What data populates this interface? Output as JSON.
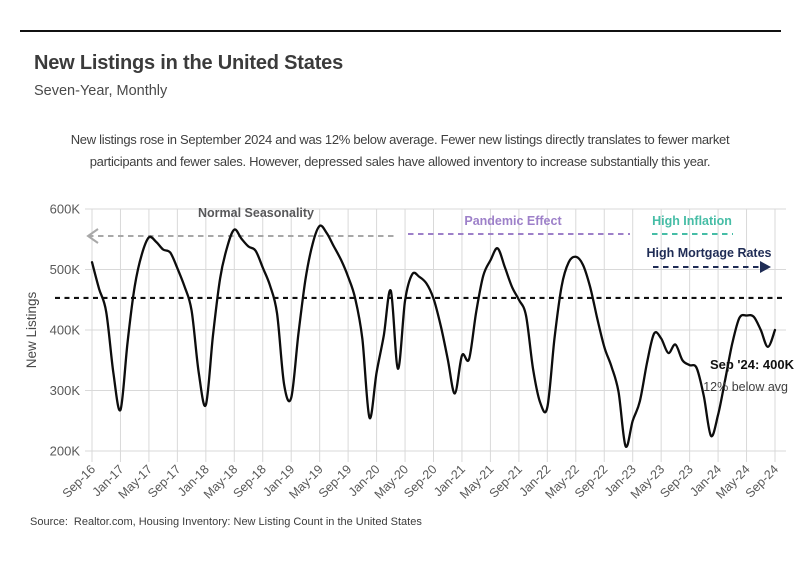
{
  "header": {
    "title": "New Listings in the United States",
    "subtitle": "Seven-Year, Monthly"
  },
  "description": {
    "lines": [
      "New listings rose in September 2024 and was 12% below average. Fewer new listings directly translates to fewer market",
      "participants and fewer sales. However, depressed sales have allowed inventory to increase substantially this year."
    ]
  },
  "source": {
    "label": "Source:",
    "text": "Realtor.com, Housing Inventory: New Listing Count in the United States"
  },
  "colors": {
    "series_line": "#0d0d0d",
    "average_line": "#111111",
    "gridline": "#d9d9d9",
    "tick_label": "#595959",
    "normal_seasonality_text": "#58585a",
    "normal_seasonality_line": "#a8a8a8",
    "pandemic_effect": "#9d80c9",
    "high_inflation": "#46bda6",
    "high_mortgage_rates": "#1f2c55"
  },
  "chart_data": {
    "type": "line",
    "title": "New Listings in the United States",
    "subtitle": "Seven-Year, Monthly",
    "unit": "thousands",
    "ylabel": "New Listings",
    "ylim": [
      200,
      600
    ],
    "grid": true,
    "y_ticks": {
      "labels": [
        "600K",
        "500K",
        "400K",
        "300K",
        "200K"
      ],
      "values": [
        600,
        500,
        400,
        300,
        200
      ]
    },
    "x_tick_labels": [
      "Sep-16",
      "Jan-17",
      "May-17",
      "Sep-17",
      "Jan-18",
      "May-18",
      "Sep-18",
      "Jan-19",
      "May-19",
      "Sep-19",
      "Jan-20",
      "May-20",
      "Sep-20",
      "Jan-21",
      "May-21",
      "Sep-21",
      "Jan-22",
      "May-22",
      "Sep-22",
      "Jan-23",
      "May-23",
      "Sep-23",
      "Jan-24",
      "May-24",
      "Sep-24"
    ],
    "months": [
      "Sep-16",
      "Oct-16",
      "Nov-16",
      "Dec-16",
      "Jan-17",
      "Feb-17",
      "Mar-17",
      "Apr-17",
      "May-17",
      "Jun-17",
      "Jul-17",
      "Aug-17",
      "Sep-17",
      "Oct-17",
      "Nov-17",
      "Dec-17",
      "Jan-18",
      "Feb-18",
      "Mar-18",
      "Apr-18",
      "May-18",
      "Jun-18",
      "Jul-18",
      "Aug-18",
      "Sep-18",
      "Oct-18",
      "Nov-18",
      "Dec-18",
      "Jan-19",
      "Feb-19",
      "Mar-19",
      "Apr-19",
      "May-19",
      "Jun-19",
      "Jul-19",
      "Aug-19",
      "Sep-19",
      "Oct-19",
      "Nov-19",
      "Dec-19",
      "Jan-20",
      "Feb-20",
      "Mar-20",
      "Apr-20",
      "May-20",
      "Jun-20",
      "Jul-20",
      "Aug-20",
      "Sep-20",
      "Oct-20",
      "Nov-20",
      "Dec-20",
      "Jan-21",
      "Feb-21",
      "Mar-21",
      "Apr-21",
      "May-21",
      "Jun-21",
      "Jul-21",
      "Aug-21",
      "Sep-21",
      "Oct-21",
      "Nov-21",
      "Dec-21",
      "Jan-22",
      "Feb-22",
      "Mar-22",
      "Apr-22",
      "May-22",
      "Jun-22",
      "Jul-22",
      "Aug-22",
      "Sep-22",
      "Oct-22",
      "Nov-22",
      "Dec-22",
      "Jan-23",
      "Feb-23",
      "Mar-23",
      "Apr-23",
      "May-23",
      "Jun-23",
      "Jul-23",
      "Aug-23",
      "Sep-23",
      "Oct-23",
      "Nov-23",
      "Dec-23",
      "Jan-24",
      "Feb-24",
      "Mar-24",
      "Apr-24",
      "May-24",
      "Jun-24",
      "Jul-24",
      "Aug-24",
      "Sep-24"
    ],
    "values": [
      512,
      468,
      430,
      330,
      268,
      380,
      472,
      525,
      553,
      546,
      533,
      528,
      502,
      472,
      432,
      330,
      276,
      390,
      485,
      537,
      566,
      551,
      538,
      531,
      503,
      474,
      428,
      310,
      288,
      392,
      483,
      542,
      572,
      560,
      538,
      516,
      488,
      452,
      385,
      255,
      330,
      390,
      465,
      336,
      448,
      492,
      488,
      477,
      452,
      408,
      352,
      295,
      358,
      352,
      430,
      490,
      515,
      535,
      505,
      472,
      450,
      424,
      335,
      280,
      272,
      385,
      472,
      512,
      521,
      508,
      472,
      420,
      372,
      340,
      298,
      208,
      250,
      282,
      345,
      394,
      386,
      362,
      376,
      350,
      342,
      337,
      290,
      225,
      260,
      318,
      378,
      420,
      424,
      422,
      400,
      372,
      400
    ],
    "average_line": {
      "value": 453,
      "style": "dashed-black"
    },
    "annotations": [
      {
        "id": "normal-seasonality",
        "label": "Normal Seasonality",
        "arrow": "left"
      },
      {
        "id": "pandemic-effect",
        "label": "Pandemic Effect",
        "arrow": "none"
      },
      {
        "id": "high-inflation",
        "label": "High Inflation",
        "arrow": "none"
      },
      {
        "id": "high-mortgage-rates",
        "label": "High Mortgage Rates",
        "arrow": "right"
      }
    ],
    "point_annotation": {
      "label": "Sep '24: 400K",
      "sublabel": "12% below avg"
    },
    "legend": "none"
  }
}
